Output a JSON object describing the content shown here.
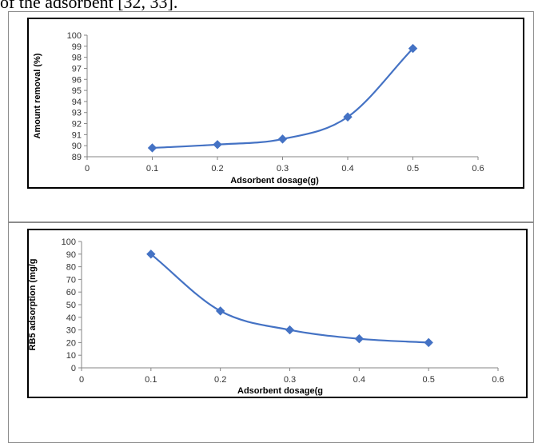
{
  "page": {
    "caption": "of the adsorbent [32, 33]."
  },
  "chart_data": [
    {
      "type": "line",
      "title": "",
      "xlabel": "Adsorbent dosage(g)",
      "ylabel": "Amount removal (%)",
      "xlim": [
        0,
        0.6
      ],
      "ylim": [
        89,
        100
      ],
      "x_ticks": [
        "0",
        "0.1",
        "0.2",
        "0.3",
        "0.4",
        "0.5",
        "0.6"
      ],
      "y_ticks": [
        "89",
        "90",
        "91",
        "92",
        "93",
        "94",
        "95",
        "96",
        "97",
        "98",
        "99",
        "100"
      ],
      "grid": false,
      "legend": "none",
      "series_color": "#4472c4",
      "series": [
        {
          "x": [
            0.1,
            0.2,
            0.3,
            0.4,
            0.5
          ],
          "values": [
            89.8,
            90.1,
            90.6,
            92.6,
            98.8
          ]
        }
      ]
    },
    {
      "type": "line",
      "title": "",
      "xlabel": "Adsorbent dosage(g",
      "ylabel": "RB5 adsorption (mg/g",
      "xlim": [
        0,
        0.6
      ],
      "ylim": [
        0,
        100
      ],
      "x_ticks": [
        "0",
        "0.1",
        "0.2",
        "0.3",
        "0.4",
        "0.5",
        "0.6"
      ],
      "y_ticks": [
        "0",
        "10",
        "20",
        "30",
        "40",
        "50",
        "60",
        "70",
        "80",
        "90",
        "100"
      ],
      "grid": false,
      "legend": "none",
      "series_color": "#4472c4",
      "series": [
        {
          "x": [
            0.1,
            0.2,
            0.3,
            0.4,
            0.5
          ],
          "values": [
            90,
            45,
            30,
            23,
            20
          ]
        }
      ]
    }
  ]
}
